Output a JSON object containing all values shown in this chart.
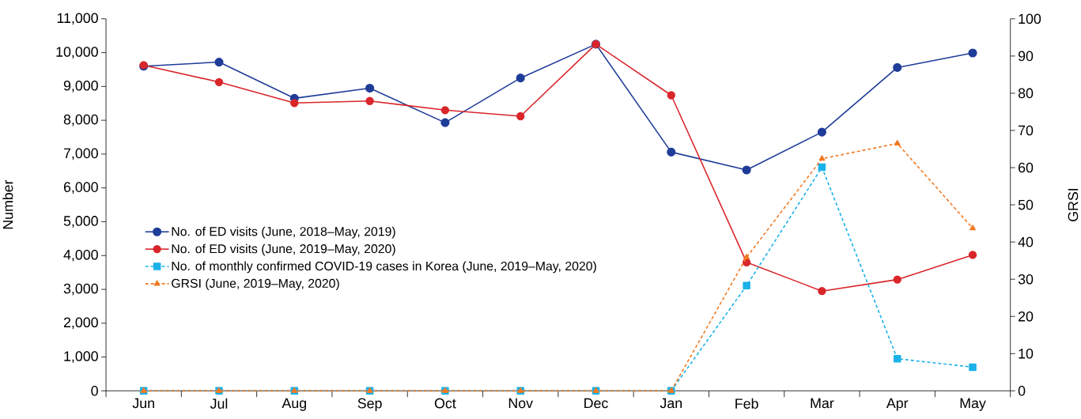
{
  "chart_data": {
    "type": "line",
    "ylabel": "Number",
    "y2label": "GRSI",
    "categories": [
      "Jun",
      "Jul",
      "Aug",
      "Sep",
      "Oct",
      "Nov",
      "Dec",
      "Jan",
      "Feb",
      "Mar",
      "Apr",
      "May"
    ],
    "series": [
      {
        "name": "No. of ED visits (June, 2018–May, 2019)",
        "color": "#1f3c99",
        "marker": "circle",
        "line_style": "solid",
        "values": [
          9600,
          9720,
          8650,
          8950,
          7930,
          9250,
          10250,
          7060,
          6530,
          7650,
          9560,
          9990
        ]
      },
      {
        "name": "No. of ED visits (June, 2019–May, 2020)",
        "color": "#d9262b",
        "marker": "circle",
        "line_style": "solid",
        "values": [
          9630,
          9130,
          8510,
          8570,
          8300,
          8120,
          10250,
          8740,
          3800,
          2950,
          3290,
          4020
        ]
      },
      {
        "name": "No. of monthly confirmed COVID-19 cases in Korea (June, 2019–May, 2020)",
        "color": "#1ab2e8",
        "marker": "square",
        "line_style": "dashed",
        "values": [
          0,
          0,
          0,
          0,
          0,
          0,
          0,
          0,
          3110,
          6610,
          950,
          700
        ]
      },
      {
        "name": "GRSI (June, 2019–May, 2020)",
        "color": "#f07a23",
        "marker": "triangle",
        "line_style": "dashed",
        "axis": "y2",
        "values": [
          0,
          0,
          0,
          0,
          0,
          0,
          0,
          0,
          35.9,
          62.4,
          66.5,
          43.7
        ]
      }
    ],
    "ylim": [
      0,
      11000
    ],
    "yticks": [
      0,
      {
        "value": 1000,
        "label": "1,000"
      },
      {
        "value": 2000,
        "label": "2,000"
      },
      {
        "value": 3000,
        "label": "3,000"
      },
      {
        "value": 4000,
        "label": "4,000"
      },
      {
        "value": 5000,
        "label": "5,000"
      },
      {
        "value": 6000,
        "label": "6,000"
      },
      {
        "value": 7000,
        "label": "7,000"
      },
      {
        "value": 8000,
        "label": "8,000"
      },
      {
        "value": 9000,
        "label": "9,000"
      },
      {
        "value": 10000,
        "label": "10,000"
      },
      {
        "value": 11000,
        "label": "11,000"
      }
    ],
    "y2lim": [
      0,
      100
    ],
    "y2ticks": [
      0,
      10,
      20,
      30,
      40,
      50,
      60,
      70,
      80,
      90,
      100
    ],
    "legend": "left",
    "grid": false
  }
}
